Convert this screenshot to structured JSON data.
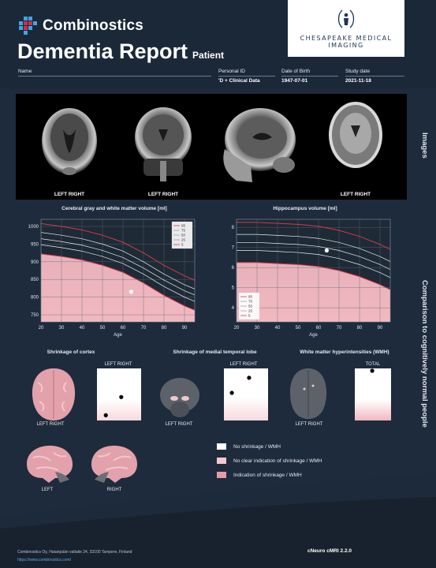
{
  "brand": {
    "name": "Combinostics"
  },
  "report": {
    "title": "Dementia Report",
    "subtitle": "Patient"
  },
  "partner": {
    "name": "CHESAPEAKE MEDICAL IMAGING"
  },
  "fields": {
    "name_label": "Name",
    "personal_id_label": "Personal ID",
    "personal_id_value": "'D + Clinical Data",
    "dob_label": "Date of Birth",
    "dob_value": "1947-07-01",
    "study_label": "Study date",
    "study_value": "2021-11-18"
  },
  "images": {
    "section_label": "Images",
    "labels": [
      "LEFT RIGHT",
      "LEFT RIGHT",
      "LEFT RIGHT"
    ]
  },
  "comparison": {
    "section_label": "Comparison to cognitively normal people"
  },
  "chart_data": [
    {
      "type": "line",
      "title": "Cerebral gray and white matter volume [ml]",
      "xlabel": "Age",
      "ylabel": "",
      "x": [
        20,
        30,
        40,
        50,
        60,
        70,
        80,
        90,
        95
      ],
      "xlim": [
        20,
        95
      ],
      "ylim": [
        730,
        1020
      ],
      "xticks": [
        "20",
        "30",
        "40",
        "50",
        "60",
        "70",
        "80",
        "90"
      ],
      "yticks": [
        "750",
        "800",
        "850",
        "900",
        "950",
        "1000"
      ],
      "legend_position": "top-right",
      "series": [
        {
          "name": "95",
          "values": [
            1008,
            1000,
            990,
            975,
            955,
            925,
            890,
            860,
            848
          ]
        },
        {
          "name": "75",
          "values": [
            983,
            975,
            965,
            950,
            930,
            900,
            865,
            835,
            823
          ]
        },
        {
          "name": "50",
          "values": [
            965,
            957,
            947,
            932,
            912,
            882,
            848,
            818,
            806
          ]
        },
        {
          "name": "25",
          "values": [
            948,
            940,
            930,
            915,
            895,
            865,
            830,
            800,
            788
          ]
        },
        {
          "name": "5",
          "values": [
            922,
            915,
            905,
            890,
            870,
            840,
            805,
            775,
            763
          ]
        }
      ],
      "patient": {
        "x": 64,
        "y": 815
      },
      "colors": {
        "low": "#f2b8c0",
        "line": "#d43a46"
      }
    },
    {
      "type": "line",
      "title": "Hippocampus volume [ml]",
      "xlabel": "Age",
      "ylabel": "",
      "x": [
        20,
        30,
        40,
        50,
        60,
        70,
        80,
        90,
        95
      ],
      "xlim": [
        20,
        95
      ],
      "ylim": [
        3.3,
        8.4
      ],
      "xticks": [
        "20",
        "30",
        "40",
        "50",
        "60",
        "70",
        "80",
        "90"
      ],
      "yticks": [
        "4",
        "5",
        "6",
        "7",
        "8"
      ],
      "legend_position": "bottom-left",
      "series": [
        {
          "name": "95",
          "values": [
            8.25,
            8.25,
            8.2,
            8.15,
            8.05,
            7.85,
            7.55,
            7.15,
            6.9
          ]
        },
        {
          "name": "75",
          "values": [
            7.65,
            7.65,
            7.6,
            7.55,
            7.45,
            7.25,
            6.95,
            6.55,
            6.3
          ]
        },
        {
          "name": "50",
          "values": [
            7.25,
            7.25,
            7.2,
            7.15,
            7.05,
            6.85,
            6.55,
            6.15,
            5.9
          ]
        },
        {
          "name": "25",
          "values": [
            6.85,
            6.85,
            6.8,
            6.75,
            6.65,
            6.45,
            6.15,
            5.75,
            5.5
          ]
        },
        {
          "name": "5",
          "values": [
            6.25,
            6.25,
            6.2,
            6.15,
            6.05,
            5.85,
            5.55,
            5.15,
            4.9
          ]
        }
      ],
      "patient": {
        "x": 64,
        "y": 6.85
      },
      "colors": {
        "low": "#f2b8c0",
        "line": "#d43a46"
      }
    }
  ],
  "shrinkage": {
    "cortex": {
      "title": "Shrinkage of cortex",
      "label_top": "LEFT RIGHT",
      "label_bottom": "LEFT RIGHT",
      "points": [
        [
          0.2,
          0.9
        ],
        [
          0.55,
          0.55
        ]
      ]
    },
    "mtl": {
      "title": "Shrinkage of medial temporal lobe",
      "label_top": "LEFT RIGHT",
      "label_bottom": "LEFT RIGHT",
      "points": [
        [
          0.18,
          0.47
        ],
        [
          0.57,
          0.18
        ]
      ]
    },
    "wmh": {
      "title": "White matter hyperintensities (WMH)",
      "label_top": "TOTAL",
      "label_bottom": "LEFT RIGHT",
      "points": [
        [
          0.48,
          0.0
        ]
      ]
    }
  },
  "side_views": {
    "left": "LEFT",
    "right": "RIGHT"
  },
  "legend": {
    "items": [
      {
        "label": "No shrinkage / WMH",
        "color": "#ffffff"
      },
      {
        "label": "No clear indication of shrinkage / WMH",
        "color": "#f3c9cf"
      },
      {
        "label": "Indication of shrinkage / WMH",
        "color": "#e69aa3"
      }
    ]
  },
  "footer": {
    "address": "Combinostics Oy, Hatanpään valtatie 24, 33100 Tampere, Finland",
    "url": "https://www.combinostics.com/",
    "version": "cNeuro cMRI 2.2.0"
  }
}
